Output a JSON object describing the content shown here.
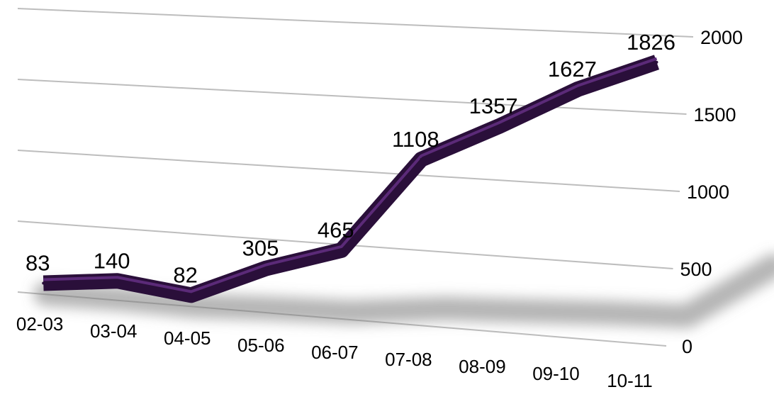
{
  "chart_data": {
    "type": "line",
    "categories": [
      "02-03",
      "03-04",
      "04-05",
      "05-06",
      "06-07",
      "07-08",
      "08-09",
      "09-10",
      "10-11"
    ],
    "series": [
      {
        "values": [
          83,
          140,
          82,
          305,
          465,
          1108,
          1357,
          1627,
          1826
        ]
      }
    ],
    "data_labels": [
      "83",
      "140",
      "82",
      "305",
      "465",
      "1108",
      "1357",
      "1627",
      "1826"
    ],
    "y_ticks": [
      "0",
      "500",
      "1000",
      "1500",
      "2000"
    ],
    "ylim": [
      0,
      2000
    ],
    "grid": true,
    "legend": "none",
    "line_color": "#2a0f3a",
    "line_highlight_color": "#5b2a78"
  }
}
